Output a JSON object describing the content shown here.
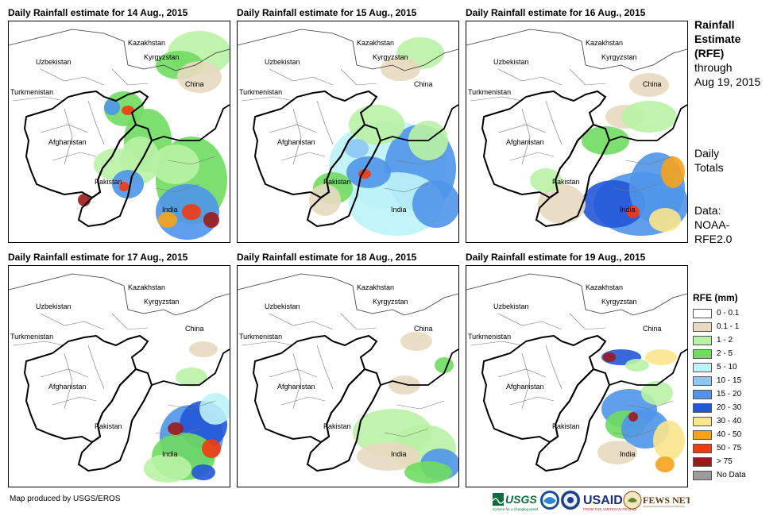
{
  "panels": [
    {
      "title": "Daily Rainfall estimate for 14 Aug., 2015"
    },
    {
      "title": "Daily Rainfall estimate for 15 Aug., 2015"
    },
    {
      "title": "Daily Rainfall estimate for 16 Aug., 2015"
    },
    {
      "title": "Daily Rainfall estimate for 17 Aug., 2015"
    },
    {
      "title": "Daily Rainfall estimate for 18 Aug., 2015"
    },
    {
      "title": "Daily Rainfall estimate for 19 Aug., 2015"
    }
  ],
  "map_labels": {
    "kazakhstan": "Kazakhstan",
    "uzbekistan": "Uzbekistan",
    "kyrgyzstan": "Kyrgyzstan",
    "turkmenistan": "Turkmenistan",
    "china": "China",
    "afghanistan": "Afghanistan",
    "pakistan": "Pakistan",
    "india": "India"
  },
  "side": {
    "title_line1": "Rainfall",
    "title_line2": "Estimate",
    "title_line3": "(RFE)",
    "through_line1": "through",
    "through_line2": "Aug 19, 2015",
    "daily_line1": "Daily",
    "daily_line2": "Totals",
    "data_line1": "Data:",
    "data_line2": "NOAA-",
    "data_line3": "RFE2.0"
  },
  "legend": {
    "title": "RFE (mm)",
    "items": [
      {
        "label": "0 - 0.1",
        "color": "#ffffff"
      },
      {
        "label": "0.1 - 1",
        "color": "#e8d9bf"
      },
      {
        "label": "1 - 2",
        "color": "#b9f2a4"
      },
      {
        "label": "2 - 5",
        "color": "#6fdc5f"
      },
      {
        "label": "5 - 10",
        "color": "#bdf3f7"
      },
      {
        "label": "10 - 15",
        "color": "#8cc8f5"
      },
      {
        "label": "15 - 20",
        "color": "#4f95ea"
      },
      {
        "label": "20 - 30",
        "color": "#2457d8"
      },
      {
        "label": "30 - 40",
        "color": "#fbe68c"
      },
      {
        "label": "40 - 50",
        "color": "#f7a21b"
      },
      {
        "label": "50 - 75",
        "color": "#f23a0f"
      },
      {
        "label": "> 75",
        "color": "#9b1a1a"
      },
      {
        "label": "No Data",
        "color": "#9b9b9b"
      }
    ]
  },
  "footer": {
    "credit": "Map produced by USGS/EROS"
  },
  "logos": {
    "usgs": "USGS",
    "usgs_tagline": "science for a changing world",
    "usaid": "USAID",
    "usaid_tagline": "FROM THE AMERICAN PEOPLE",
    "fewsnet": "FEWS NET"
  }
}
